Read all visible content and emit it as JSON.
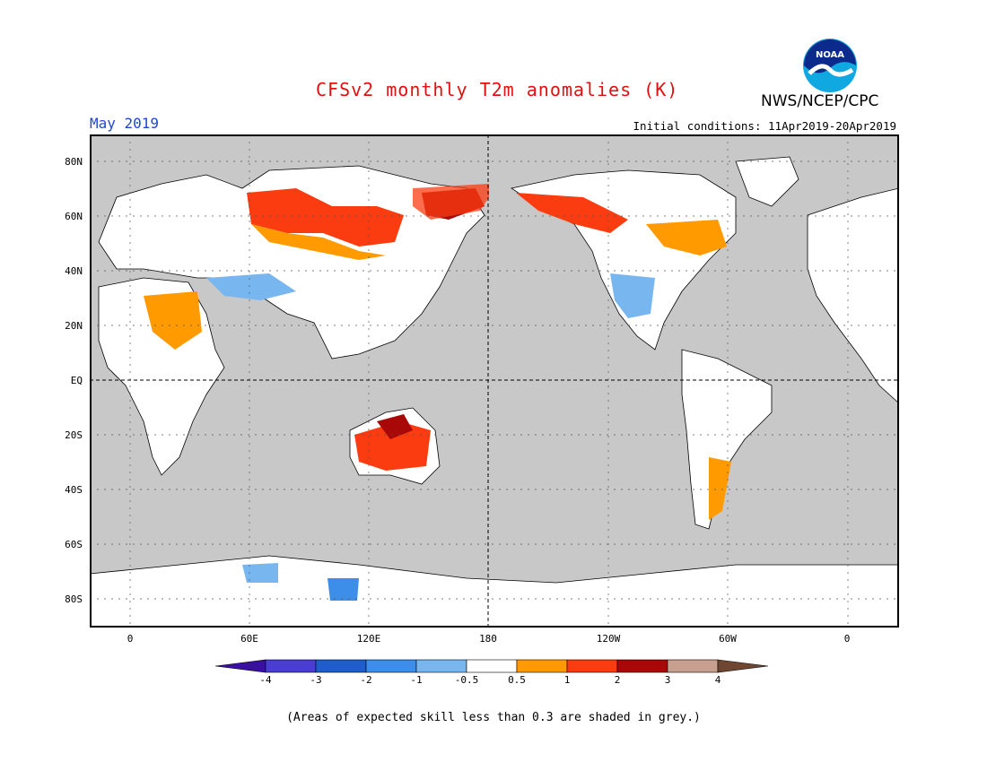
{
  "header": {
    "title": "CFSv2 monthly T2m anomalies (K)",
    "agency": "NWS/NCEP/CPC",
    "logo_text": "NOAA",
    "target_month": "May 2019",
    "initial_conditions": "Initial conditions: 11Apr2019-20Apr2019"
  },
  "map": {
    "projection": "Equirectangular, centered on 180",
    "lat_labels": [
      "80N",
      "60N",
      "40N",
      "20N",
      "EQ",
      "20S",
      "40S",
      "60S",
      "80S"
    ],
    "lon_labels": [
      "0",
      "60E",
      "120E",
      "180",
      "120W",
      "60W",
      "0"
    ],
    "land_color": "#ffffff",
    "no_skill_color": "#c8c8c8",
    "anomaly_regions": [
      {
        "region": "Northern Siberia",
        "level": "1 to 2"
      },
      {
        "region": "Northeast Siberia / Chukotka",
        "level": "2 to 3"
      },
      {
        "region": "Alaska",
        "level": "1 to 2"
      },
      {
        "region": "Central Asia",
        "level": "-1 to -0.5"
      },
      {
        "region": "Eastern Canada",
        "level": "0.5 to 1"
      },
      {
        "region": "Western United States",
        "level": "-1 to -0.5"
      },
      {
        "region": "Northern Australia",
        "level": "2 to 3"
      },
      {
        "region": "Southern South America",
        "level": "0.5 to 1"
      },
      {
        "region": "Antarctica (Indian Ocean sector)",
        "level": "-1 to -0.5"
      }
    ]
  },
  "colorbar": {
    "labels": [
      "-4",
      "-3",
      "-2",
      "-1",
      "-0.5",
      "0.5",
      "1",
      "2",
      "3",
      "4"
    ],
    "colors": [
      "#3a10a0",
      "#4a3ed0",
      "#1f5ec8",
      "#3c8ee8",
      "#78b6f0",
      "#ffffff",
      "#ff9a00",
      "#fa3c10",
      "#a80808",
      "#c8a090",
      "#6e4632"
    ]
  },
  "footnote": "(Areas of expected skill less than 0.3 are shaded in grey.)"
}
